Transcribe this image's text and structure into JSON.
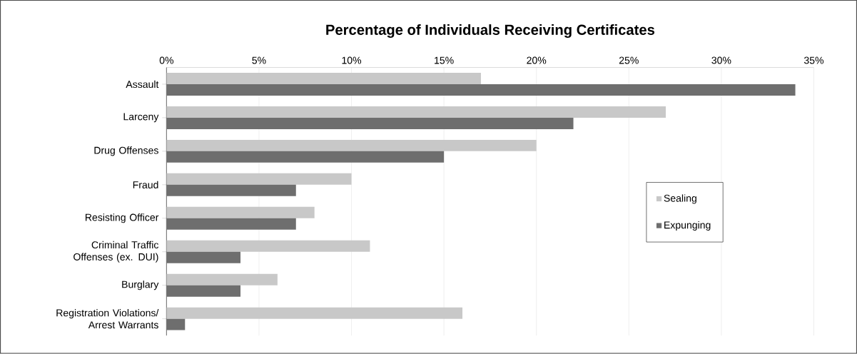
{
  "chart_data": {
    "type": "bar",
    "orientation": "horizontal",
    "title": "Percentage of Individuals Receiving Certificates",
    "categories": [
      "Assault",
      "Larceny",
      "Drug Offenses",
      "Fraud",
      "Resisting Officer",
      "Criminal Traffic Offenses (ex. DUI)",
      "Burglary",
      "Registration Violations/ Arrest Warrants"
    ],
    "series": [
      {
        "name": "Sealing",
        "color": "#c8c8c8",
        "values": [
          17,
          27,
          20,
          10,
          8,
          11,
          6,
          16
        ]
      },
      {
        "name": "Expunging",
        "color": "#6e6e6e",
        "values": [
          34,
          22,
          15,
          7,
          7,
          4,
          4,
          1
        ]
      }
    ],
    "xlim": [
      0,
      35
    ],
    "xticks": [
      {
        "value": 0,
        "label": "0%"
      },
      {
        "value": 5,
        "label": "5%"
      },
      {
        "value": 10,
        "label": "10%"
      },
      {
        "value": 15,
        "label": "15%"
      },
      {
        "value": 20,
        "label": "20%"
      },
      {
        "value": 25,
        "label": "25%"
      },
      {
        "value": 30,
        "label": "30%"
      },
      {
        "value": 35,
        "label": "35%"
      }
    ],
    "grid": "x",
    "legend": "right"
  }
}
